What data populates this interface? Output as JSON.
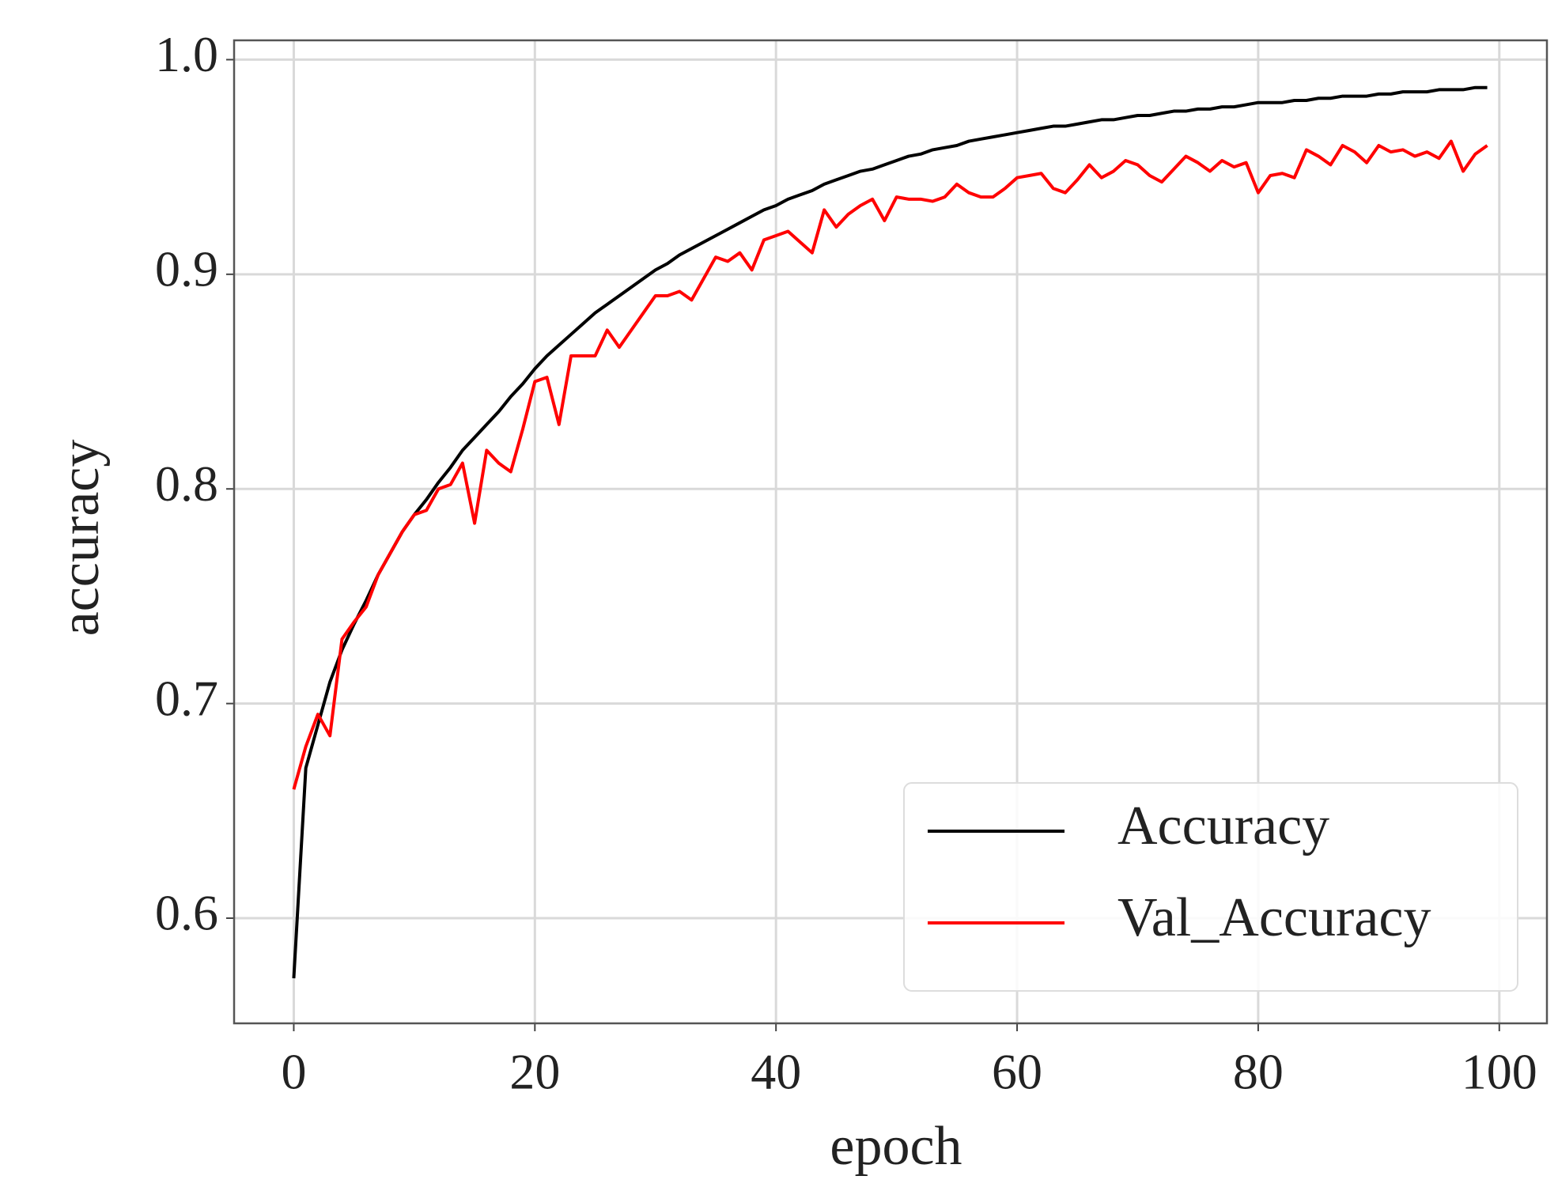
{
  "chart_data": {
    "type": "line",
    "xlabel": "epoch",
    "ylabel": "accuracy",
    "x": [
      0,
      1,
      2,
      3,
      4,
      5,
      6,
      7,
      8,
      9,
      10,
      11,
      12,
      13,
      14,
      15,
      16,
      17,
      18,
      19,
      20,
      21,
      22,
      23,
      24,
      25,
      26,
      27,
      28,
      29,
      30,
      31,
      32,
      33,
      34,
      35,
      36,
      37,
      38,
      39,
      40,
      41,
      42,
      43,
      44,
      45,
      46,
      47,
      48,
      49,
      50,
      51,
      52,
      53,
      54,
      55,
      56,
      57,
      58,
      59,
      60,
      61,
      62,
      63,
      64,
      65,
      66,
      67,
      68,
      69,
      70,
      71,
      72,
      73,
      74,
      75,
      76,
      77,
      78,
      79,
      80,
      81,
      82,
      83,
      84,
      85,
      86,
      87,
      88,
      89,
      90,
      91,
      92,
      93,
      94,
      95,
      96,
      97,
      98,
      99
    ],
    "series": [
      {
        "name": "Accuracy",
        "color": "#000000",
        "values": [
          0.572,
          0.67,
          0.69,
          0.71,
          0.725,
          0.737,
          0.748,
          0.76,
          0.77,
          0.78,
          0.788,
          0.795,
          0.803,
          0.81,
          0.818,
          0.824,
          0.83,
          0.836,
          0.843,
          0.849,
          0.856,
          0.862,
          0.867,
          0.872,
          0.877,
          0.882,
          0.886,
          0.89,
          0.894,
          0.898,
          0.902,
          0.905,
          0.909,
          0.912,
          0.915,
          0.918,
          0.921,
          0.924,
          0.927,
          0.93,
          0.932,
          0.935,
          0.937,
          0.939,
          0.942,
          0.944,
          0.946,
          0.948,
          0.949,
          0.951,
          0.953,
          0.955,
          0.956,
          0.958,
          0.959,
          0.96,
          0.962,
          0.963,
          0.964,
          0.965,
          0.966,
          0.967,
          0.968,
          0.969,
          0.969,
          0.97,
          0.971,
          0.972,
          0.972,
          0.973,
          0.974,
          0.974,
          0.975,
          0.976,
          0.976,
          0.977,
          0.977,
          0.978,
          0.978,
          0.979,
          0.98,
          0.98,
          0.98,
          0.981,
          0.981,
          0.982,
          0.982,
          0.983,
          0.983,
          0.983,
          0.984,
          0.984,
          0.985,
          0.985,
          0.985,
          0.986,
          0.986,
          0.986,
          0.987,
          0.987
        ]
      },
      {
        "name": "Val_Accuracy",
        "color": "#ff0000",
        "values": [
          0.66,
          0.68,
          0.695,
          0.685,
          0.73,
          0.738,
          0.745,
          0.76,
          0.77,
          0.78,
          0.788,
          0.79,
          0.8,
          0.802,
          0.812,
          0.784,
          0.818,
          0.812,
          0.808,
          0.828,
          0.85,
          0.852,
          0.83,
          0.862,
          0.862,
          0.862,
          0.874,
          0.866,
          0.874,
          0.882,
          0.89,
          0.89,
          0.892,
          0.888,
          0.898,
          0.908,
          0.906,
          0.91,
          0.902,
          0.916,
          0.918,
          0.92,
          0.915,
          0.91,
          0.93,
          0.922,
          0.928,
          0.932,
          0.935,
          0.925,
          0.936,
          0.935,
          0.935,
          0.934,
          0.936,
          0.942,
          0.938,
          0.936,
          0.936,
          0.94,
          0.945,
          0.946,
          0.947,
          0.94,
          0.938,
          0.944,
          0.951,
          0.945,
          0.948,
          0.953,
          0.951,
          0.946,
          0.943,
          0.949,
          0.955,
          0.952,
          0.948,
          0.953,
          0.95,
          0.952,
          0.938,
          0.946,
          0.947,
          0.945,
          0.958,
          0.955,
          0.951,
          0.96,
          0.957,
          0.952,
          0.96,
          0.957,
          0.958,
          0.955,
          0.957,
          0.954,
          0.962,
          0.948,
          0.956,
          0.96
        ]
      }
    ],
    "xlim": [
      -4.95,
      103.95
    ],
    "xticks": [
      0,
      20,
      40,
      60,
      80,
      100
    ],
    "ylim": [
      0.551,
      1.009
    ],
    "yticks": [
      0.6,
      0.7,
      0.8,
      0.9,
      {
        "value": 1.0,
        "label": "1.0"
      }
    ],
    "grid": true,
    "legend": "lower right"
  }
}
